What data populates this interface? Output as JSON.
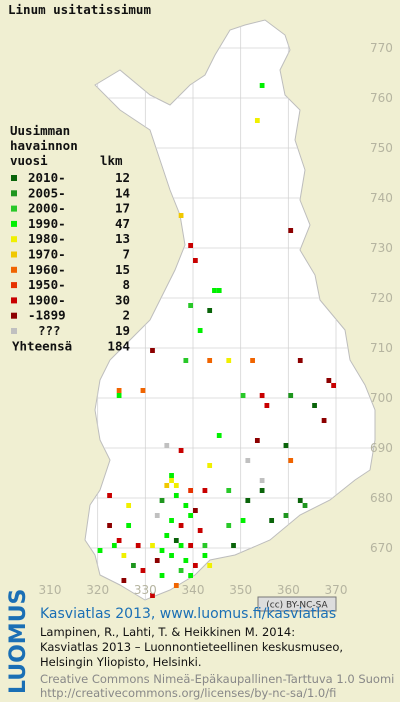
{
  "chart_data": {
    "type": "grid-map",
    "title": "Linum usitatissimum",
    "legend_header": [
      "Uusimman",
      "havainnon",
      "vuosi"
    ],
    "count_header": "lkm",
    "legend": [
      {
        "label": "2010-",
        "count": 12,
        "color": "#0a640a"
      },
      {
        "label": "2005-",
        "count": 14,
        "color": "#1e961e"
      },
      {
        "label": "2000-",
        "count": 17,
        "color": "#28c828"
      },
      {
        "label": "1990-",
        "count": 47,
        "color": "#00f000"
      },
      {
        "label": "1980-",
        "count": 13,
        "color": "#f0f000"
      },
      {
        "label": "1970-",
        "count": 7,
        "color": "#f0c800"
      },
      {
        "label": "1960-",
        "count": 15,
        "color": "#f06400"
      },
      {
        "label": "1950-",
        "count": 8,
        "color": "#e63200"
      },
      {
        "label": "1900-",
        "count": 30,
        "color": "#c80000"
      },
      {
        "label": "-1899",
        "count": 2,
        "color": "#8c0000"
      },
      {
        "label": "???",
        "count": 19,
        "color": "#c0c0c0"
      }
    ],
    "total_label": "Yhteensä",
    "total": 184,
    "xticks": [
      310,
      320,
      330,
      340,
      350,
      360,
      370
    ],
    "yticks": [
      770,
      760,
      750,
      740,
      730,
      720,
      710,
      700,
      690,
      680,
      670
    ],
    "squares": [
      [
        354,
        762,
        3
      ],
      [
        353,
        755,
        4
      ],
      [
        337,
        736,
        5
      ],
      [
        360,
        733,
        9
      ],
      [
        339,
        730,
        8
      ],
      [
        340,
        727,
        8
      ],
      [
        344,
        721,
        3
      ],
      [
        345,
        721,
        3
      ],
      [
        339,
        718,
        2
      ],
      [
        343,
        717,
        0
      ],
      [
        341,
        713,
        3
      ],
      [
        331,
        709,
        9
      ],
      [
        338,
        707,
        2
      ],
      [
        343,
        707,
        6
      ],
      [
        347,
        707,
        4
      ],
      [
        352,
        707,
        6
      ],
      [
        362,
        707,
        9
      ],
      [
        368,
        703,
        9
      ],
      [
        369,
        702,
        8
      ],
      [
        324,
        701,
        6
      ],
      [
        324,
        700,
        3
      ],
      [
        329,
        701,
        6
      ],
      [
        350,
        700,
        2
      ],
      [
        354,
        700,
        8
      ],
      [
        360,
        700,
        1
      ],
      [
        367,
        695,
        9
      ],
      [
        355,
        698,
        8
      ],
      [
        365,
        698,
        0
      ],
      [
        345,
        692,
        3
      ],
      [
        334,
        690,
        10
      ],
      [
        337,
        689,
        8
      ],
      [
        353,
        691,
        9
      ],
      [
        359,
        690,
        0
      ],
      [
        360,
        687,
        6
      ],
      [
        351,
        687,
        10
      ],
      [
        343,
        686,
        4
      ],
      [
        335,
        684,
        3
      ],
      [
        335,
        683,
        4
      ],
      [
        336,
        682,
        4
      ],
      [
        334,
        682,
        5
      ],
      [
        336,
        680,
        3
      ],
      [
        339,
        681,
        7
      ],
      [
        342,
        681,
        8
      ],
      [
        347,
        681,
        2
      ],
      [
        354,
        683,
        10
      ],
      [
        354,
        681,
        0
      ],
      [
        351,
        679,
        0
      ],
      [
        362,
        679,
        0
      ],
      [
        363,
        678,
        1
      ],
      [
        322,
        680,
        8
      ],
      [
        326,
        678,
        4
      ],
      [
        333,
        679,
        1
      ],
      [
        338,
        678,
        3
      ],
      [
        339,
        676,
        3
      ],
      [
        340,
        677,
        9
      ],
      [
        335,
        675,
        3
      ],
      [
        337,
        674,
        8
      ],
      [
        341,
        673,
        8
      ],
      [
        350,
        675,
        3
      ],
      [
        347,
        674,
        2
      ],
      [
        356,
        675,
        0
      ],
      [
        359,
        676,
        1
      ],
      [
        322,
        674,
        9
      ],
      [
        326,
        674,
        3
      ],
      [
        332,
        676,
        10
      ],
      [
        334,
        672,
        3
      ],
      [
        336,
        671,
        0
      ],
      [
        337,
        670,
        3
      ],
      [
        339,
        670,
        8
      ],
      [
        342,
        670,
        2
      ],
      [
        323,
        670,
        3
      ],
      [
        324,
        671,
        8
      ],
      [
        328,
        670,
        8
      ],
      [
        331,
        670,
        4
      ],
      [
        333,
        669,
        3
      ],
      [
        332,
        667,
        9
      ],
      [
        335,
        668,
        3
      ],
      [
        338,
        667,
        3
      ],
      [
        340,
        666,
        8
      ],
      [
        343,
        666,
        4
      ],
      [
        325,
        668,
        4
      ],
      [
        327,
        666,
        1
      ],
      [
        329,
        665,
        8
      ],
      [
        320,
        669,
        3
      ],
      [
        325,
        663,
        9
      ],
      [
        331,
        660,
        8
      ],
      [
        336,
        662,
        6
      ],
      [
        333,
        664,
        3
      ],
      [
        339,
        664,
        3
      ],
      [
        337,
        665,
        2
      ],
      [
        342,
        668,
        3
      ],
      [
        348,
        670,
        0
      ]
    ],
    "license_badge": "(cc) BY-NC-SA",
    "logo": "LUOMUS",
    "atlas_link": "Kasviatlas 2013, www.luomus.fi/kasviatlas",
    "citation": [
      "Lampinen, R., Lahti, T. & Heikkinen M. 2014:",
      "Kasviatlas 2013 – Luonnontieteellinen keskusmuseo,",
      "Helsingin Yliopisto, Helsinki."
    ],
    "license": [
      "Creative Commons Nimeä-Epäkaupallinen-Tarttuva 1.0 Suomi",
      "http://creativecommons.org/licenses/by-nc-sa/1.0/fi"
    ]
  }
}
